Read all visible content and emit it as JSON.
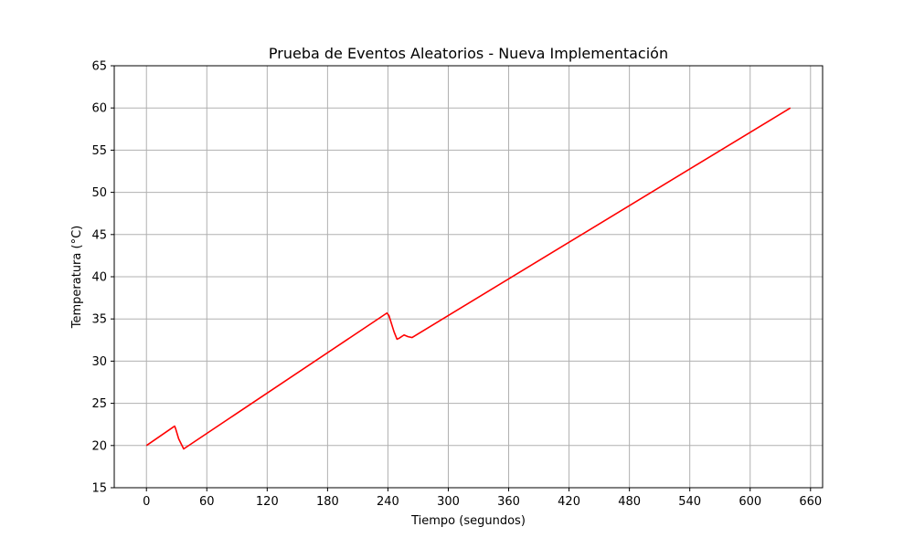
{
  "chart_data": {
    "type": "line",
    "title": "Prueba de Eventos Aleatorios - Nueva Implementación",
    "xlabel": "Tiempo (segundos)",
    "ylabel": "Temperatura (°C)",
    "xlim": [
      -32,
      672
    ],
    "ylim": [
      15,
      65
    ],
    "xticks": [
      0,
      60,
      120,
      180,
      240,
      300,
      360,
      420,
      480,
      540,
      600,
      660
    ],
    "yticks": [
      15,
      20,
      25,
      30,
      35,
      40,
      45,
      50,
      55,
      60,
      65
    ],
    "grid": true,
    "series": [
      {
        "color": "#ff0000",
        "x": [
          0,
          28,
          29,
          32,
          37,
          239,
          241,
          246,
          249,
          251,
          256,
          260,
          264,
          640
        ],
        "y": [
          20.0,
          22.3,
          22.0,
          20.8,
          19.6,
          35.7,
          35.4,
          33.5,
          32.6,
          32.7,
          33.1,
          32.9,
          32.8,
          60.0
        ]
      }
    ]
  }
}
